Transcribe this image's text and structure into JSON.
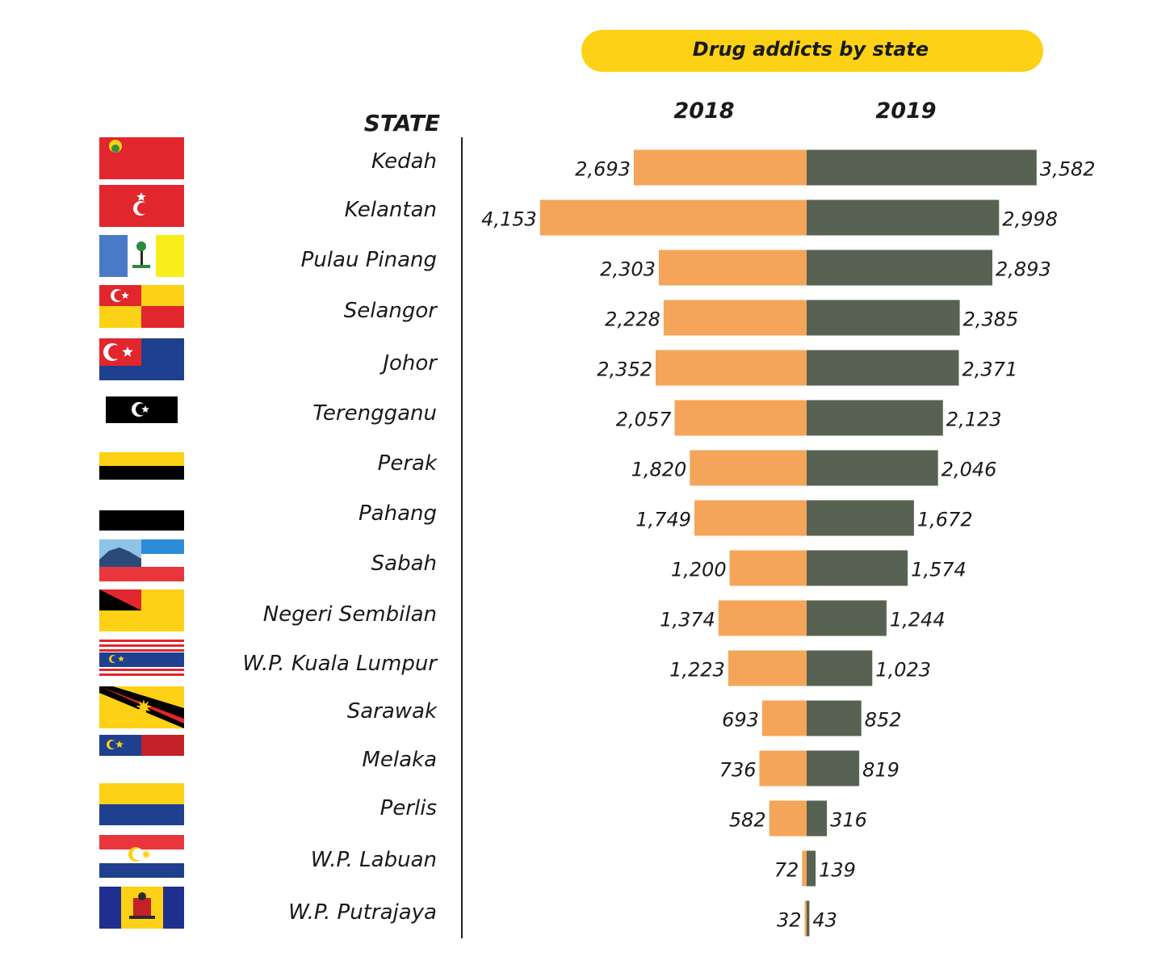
{
  "chart_data": {
    "type": "bar",
    "title": "Drug addicts by state",
    "category_header": "STATE",
    "categories": [
      "Kedah",
      "Kelantan",
      "Pulau Pinang",
      "Selangor",
      "Johor",
      "Terengganu",
      "Perak",
      "Pahang",
      "Sabah",
      "Negeri Sembilan",
      "W.P. Kuala Lumpur",
      "Sarawak",
      "Melaka",
      "Perlis",
      "W.P. Labuan",
      "W.P. Putrajaya"
    ],
    "series": [
      {
        "name": "2018",
        "values": [
          2693,
          4153,
          2303,
          2228,
          2352,
          2057,
          1820,
          1749,
          1200,
          1374,
          1223,
          693,
          736,
          582,
          72,
          32
        ],
        "labels": [
          "2,693",
          "4,153",
          "2,303",
          "2,228",
          "2,352",
          "2,057",
          "1,820",
          "1,749",
          "1,200",
          "1,374",
          "1,223",
          "693",
          "736",
          "582",
          "72",
          "32"
        ]
      },
      {
        "name": "2019",
        "values": [
          3582,
          2998,
          2893,
          2385,
          2371,
          2123,
          2046,
          1672,
          1574,
          1244,
          1023,
          852,
          819,
          316,
          139,
          43
        ],
        "labels": [
          "3,582",
          "2,998",
          "2,893",
          "2,385",
          "2,371",
          "2,123",
          "2,046",
          "1,672",
          "1,574",
          "1,244",
          "1,023",
          "852",
          "819",
          "316",
          "139",
          "43"
        ]
      }
    ],
    "orientation": "horizontal-butterfly",
    "colors": {
      "2018": "#f5a55a",
      "2019": "#576253",
      "title_pill": "#fcd116"
    },
    "flag_icons": [
      "kedah-flag-icon",
      "kelantan-flag-icon",
      "pulau-pinang-flag-icon",
      "selangor-flag-icon",
      "johor-flag-icon",
      "terengganu-flag-icon",
      "perak-flag-icon",
      "pahang-flag-icon",
      "sabah-flag-icon",
      "negeri-sembilan-flag-icon",
      "kuala-lumpur-flag-icon",
      "sarawak-flag-icon",
      "melaka-flag-icon",
      "perlis-flag-icon",
      "labuan-flag-icon",
      "putrajaya-flag-icon"
    ]
  }
}
